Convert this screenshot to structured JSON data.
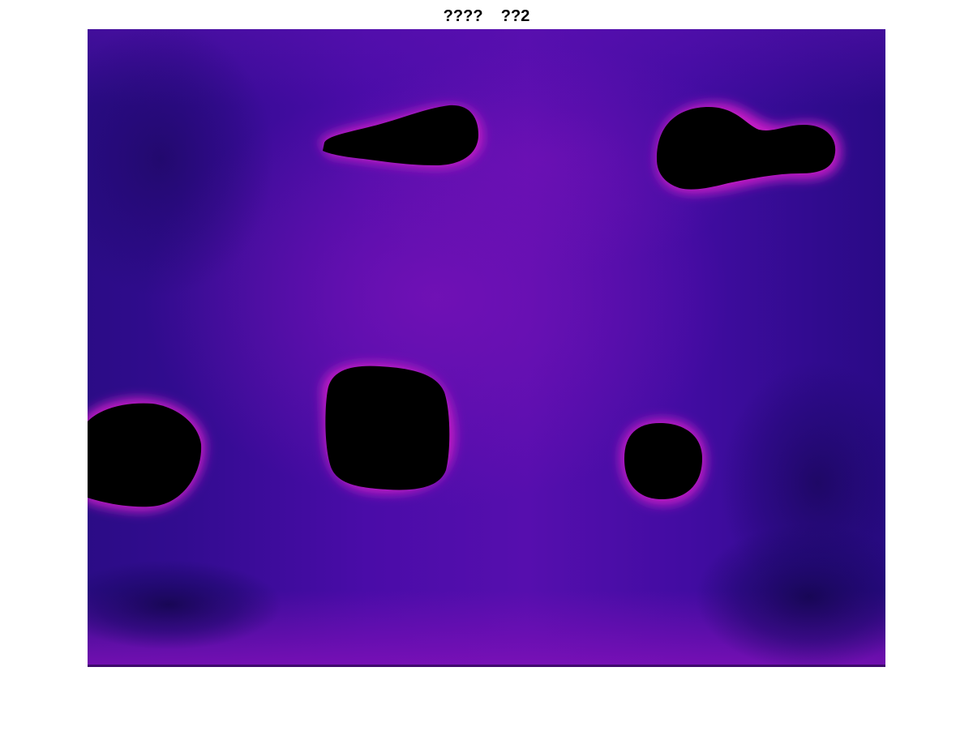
{
  "figure": {
    "title": "????    ??2"
  },
  "image": {
    "description_colors": {
      "background_dark": "#2a0a8a",
      "background_mid": "#4a0aa6",
      "background_glow": "#8a10b8",
      "hole_edge_glow": "#c020c8",
      "hole_fill": "#000000"
    }
  }
}
